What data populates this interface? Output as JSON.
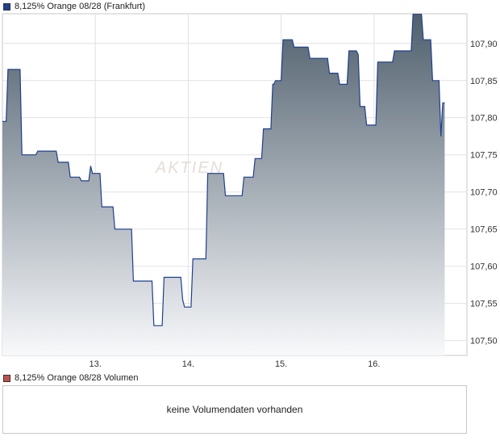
{
  "price_panel": {
    "legend_label": "8,125% Orange 08/28 (Frankfurt)",
    "legend_color": "#1f3f8f",
    "watermark": "AKTIEN"
  },
  "volume_panel": {
    "legend_label": "8,125% Orange 08/28 Volumen",
    "legend_color": "#c0504d",
    "message": "keine Volumendaten vorhanden"
  },
  "chart_data": {
    "type": "area",
    "title": "8,125% Orange 08/28 (Frankfurt)",
    "xlabel": "",
    "ylabel": "",
    "x_ticks": [
      "13.",
      "14.",
      "15.",
      "16."
    ],
    "y_ticks": [
      "107,50",
      "107,55",
      "107,60",
      "107,65",
      "107,70",
      "107,75",
      "107,80",
      "107,85",
      "107,90"
    ],
    "ylim": [
      107.48,
      107.94
    ],
    "xlim": [
      12.0,
      17.0
    ],
    "grid": true,
    "line_color": "#1f3f8f",
    "fill_top_color": "#4f5f6d",
    "fill_bottom_color": "#f8f9fb",
    "series": [
      {
        "name": "8,125% Orange 08/28 (Frankfurt)",
        "points": [
          [
            12.0,
            107.795
          ],
          [
            12.04,
            107.795
          ],
          [
            12.06,
            107.865
          ],
          [
            12.19,
            107.865
          ],
          [
            12.21,
            107.75
          ],
          [
            12.36,
            107.75
          ],
          [
            12.38,
            107.755
          ],
          [
            12.58,
            107.755
          ],
          [
            12.6,
            107.74
          ],
          [
            12.71,
            107.74
          ],
          [
            12.73,
            107.72
          ],
          [
            12.83,
            107.72
          ],
          [
            12.85,
            107.715
          ],
          [
            12.93,
            107.715
          ],
          [
            12.95,
            107.735
          ],
          [
            12.97,
            107.725
          ],
          [
            13.05,
            107.725
          ],
          [
            13.07,
            107.68
          ],
          [
            13.19,
            107.68
          ],
          [
            13.21,
            107.65
          ],
          [
            13.39,
            107.65
          ],
          [
            13.41,
            107.58
          ],
          [
            13.61,
            107.58
          ],
          [
            13.63,
            107.52
          ],
          [
            13.72,
            107.52
          ],
          [
            13.74,
            107.585
          ],
          [
            13.92,
            107.585
          ],
          [
            13.94,
            107.555
          ],
          [
            13.96,
            107.545
          ],
          [
            14.03,
            107.545
          ],
          [
            14.05,
            107.61
          ],
          [
            14.19,
            107.61
          ],
          [
            14.21,
            107.725
          ],
          [
            14.38,
            107.725
          ],
          [
            14.4,
            107.695
          ],
          [
            14.58,
            107.695
          ],
          [
            14.6,
            107.72
          ],
          [
            14.7,
            107.72
          ],
          [
            14.72,
            107.745
          ],
          [
            14.79,
            107.745
          ],
          [
            14.81,
            107.785
          ],
          [
            14.89,
            107.785
          ],
          [
            14.91,
            107.845
          ],
          [
            14.92,
            107.845
          ],
          [
            14.94,
            107.85
          ],
          [
            15.0,
            107.85
          ],
          [
            15.02,
            107.905
          ],
          [
            15.12,
            107.905
          ],
          [
            15.14,
            107.895
          ],
          [
            15.29,
            107.895
          ],
          [
            15.31,
            107.88
          ],
          [
            15.5,
            107.88
          ],
          [
            15.52,
            107.86
          ],
          [
            15.61,
            107.86
          ],
          [
            15.63,
            107.845
          ],
          [
            15.71,
            107.845
          ],
          [
            15.73,
            107.89
          ],
          [
            15.81,
            107.89
          ],
          [
            15.83,
            107.885
          ],
          [
            15.85,
            107.815
          ],
          [
            15.9,
            107.815
          ],
          [
            15.92,
            107.79
          ],
          [
            16.02,
            107.79
          ],
          [
            16.04,
            107.875
          ],
          [
            16.2,
            107.875
          ],
          [
            16.22,
            107.89
          ],
          [
            16.4,
            107.89
          ],
          [
            16.42,
            107.94
          ],
          [
            16.51,
            107.94
          ],
          [
            16.53,
            107.905
          ],
          [
            16.61,
            107.905
          ],
          [
            16.63,
            107.85
          ],
          [
            16.7,
            107.85
          ],
          [
            16.72,
            107.775
          ],
          [
            16.74,
            107.82
          ],
          [
            16.76,
            107.82
          ]
        ]
      }
    ]
  }
}
